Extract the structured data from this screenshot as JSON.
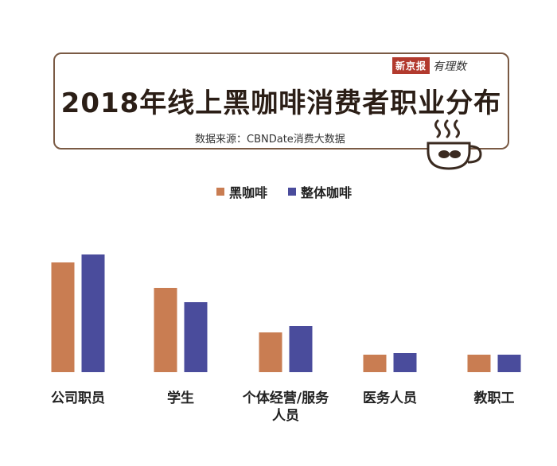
{
  "header": {
    "brand_tag": "新京报",
    "brand_script": "有理数",
    "title": "2018年线上黑咖啡消费者职业分布",
    "source": "数据来源：CBNDate消费大数据"
  },
  "colors": {
    "black_coffee": "#c97d52",
    "all_coffee": "#4a4c9c",
    "frame": "#7a5a44"
  },
  "icons": {
    "coffee": "coffee-cup-icon"
  },
  "chart_data": {
    "type": "bar",
    "categories": [
      "公司职员",
      "学生",
      "个体经营/服务人员",
      "医务人员",
      "教职工"
    ],
    "category_lines": [
      [
        "公司职员"
      ],
      [
        "学生"
      ],
      [
        "个体经营/服务",
        "人员"
      ],
      [
        "医务人员"
      ],
      [
        "教职工"
      ]
    ],
    "series": [
      {
        "name": "黑咖啡",
        "values": [
          34.5,
          26.5,
          12.5,
          5.5,
          5.5
        ]
      },
      {
        "name": "整体咖啡",
        "values": [
          37.0,
          22.0,
          14.5,
          6.0,
          5.5
        ]
      }
    ],
    "title": "2018年线上黑咖啡消费者职业分布",
    "ylim": [
      0,
      40
    ],
    "grid": false,
    "legend_position": "top-center"
  }
}
